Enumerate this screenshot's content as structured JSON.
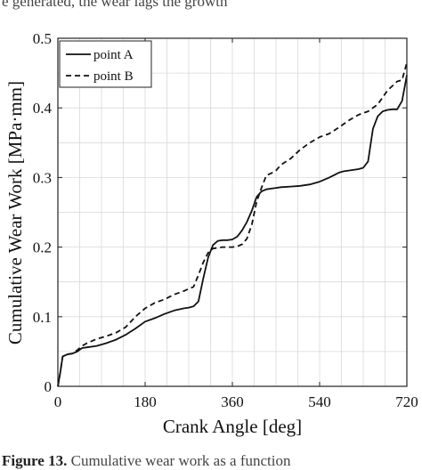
{
  "captions": {
    "top_fragment": "e generated, the wear lags the growth",
    "bottom_bold": "Figure 13.",
    "bottom_text": " Cumulative wear work as a function"
  },
  "colors": {
    "axis": "#222222",
    "grid": "#d9d9d9",
    "series": "#111111"
  },
  "chart_data": {
    "type": "line",
    "title": "",
    "xlabel": "Crank Angle [deg]",
    "ylabel": "Cumulative Wear Work [MPa·mm]",
    "xlim": [
      0,
      720
    ],
    "ylim": [
      0,
      0.5
    ],
    "xticks": [
      0,
      180,
      360,
      540,
      720
    ],
    "yticks": [
      0,
      0.1,
      0.2,
      0.3,
      0.4,
      0.5
    ],
    "ytick_labels": [
      "0",
      "0.1",
      "0.2",
      "0.3",
      "0.4",
      "0.5"
    ],
    "grid": true,
    "legend": "top-left",
    "series": [
      {
        "name": "point A",
        "style": "solid",
        "x": [
          0,
          5,
          10,
          20,
          30,
          40,
          50,
          60,
          80,
          100,
          120,
          140,
          160,
          180,
          200,
          220,
          240,
          260,
          270,
          280,
          290,
          300,
          310,
          320,
          330,
          340,
          350,
          360,
          370,
          380,
          390,
          400,
          410,
          420,
          430,
          440,
          450,
          460,
          480,
          500,
          520,
          540,
          560,
          580,
          590,
          600,
          620,
          630,
          640,
          650,
          660,
          670,
          680,
          690,
          700,
          710,
          720
        ],
        "y": [
          0,
          0.02,
          0.043,
          0.046,
          0.047,
          0.05,
          0.055,
          0.056,
          0.058,
          0.062,
          0.067,
          0.074,
          0.083,
          0.093,
          0.098,
          0.104,
          0.109,
          0.112,
          0.113,
          0.115,
          0.122,
          0.155,
          0.185,
          0.203,
          0.209,
          0.21,
          0.21,
          0.211,
          0.215,
          0.224,
          0.236,
          0.252,
          0.272,
          0.28,
          0.283,
          0.284,
          0.285,
          0.286,
          0.287,
          0.288,
          0.29,
          0.294,
          0.3,
          0.307,
          0.309,
          0.31,
          0.312,
          0.314,
          0.323,
          0.37,
          0.388,
          0.395,
          0.397,
          0.398,
          0.398,
          0.41,
          0.447
        ]
      },
      {
        "name": "point B",
        "style": "dashed",
        "x": [
          0,
          5,
          10,
          20,
          30,
          40,
          50,
          60,
          80,
          100,
          120,
          140,
          160,
          180,
          200,
          220,
          240,
          260,
          270,
          280,
          290,
          300,
          310,
          320,
          330,
          340,
          350,
          360,
          370,
          380,
          390,
          400,
          410,
          420,
          430,
          440,
          450,
          460,
          480,
          500,
          520,
          540,
          560,
          580,
          600,
          620,
          640,
          660,
          680,
          700,
          710,
          720
        ],
        "y": [
          0,
          0.02,
          0.043,
          0.046,
          0.047,
          0.052,
          0.058,
          0.062,
          0.068,
          0.072,
          0.077,
          0.085,
          0.1,
          0.112,
          0.12,
          0.125,
          0.132,
          0.137,
          0.14,
          0.143,
          0.16,
          0.178,
          0.192,
          0.198,
          0.199,
          0.2,
          0.2,
          0.2,
          0.201,
          0.204,
          0.212,
          0.232,
          0.265,
          0.285,
          0.303,
          0.306,
          0.31,
          0.318,
          0.327,
          0.34,
          0.35,
          0.358,
          0.363,
          0.372,
          0.382,
          0.39,
          0.395,
          0.405,
          0.425,
          0.438,
          0.44,
          0.465
        ]
      }
    ]
  }
}
